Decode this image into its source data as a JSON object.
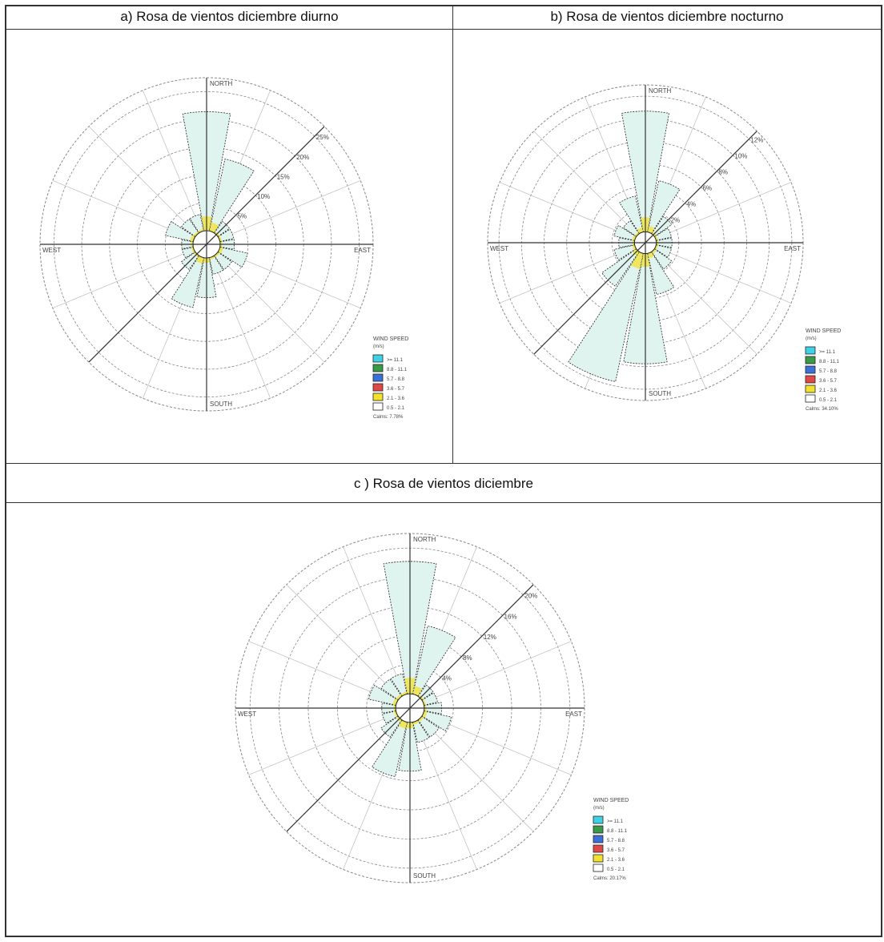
{
  "chart_data": [
    {
      "type": "wind-rose",
      "title": "a) Rosa de vientos diciembre diurno",
      "directions": [
        "N",
        "NNE",
        "NE",
        "ENE",
        "E",
        "ESE",
        "SE",
        "SSE",
        "S",
        "SSW",
        "SW",
        "WSW",
        "W",
        "WNW",
        "NW",
        "NNW"
      ],
      "frequencies_pct": [
        21,
        13,
        2.5,
        2.5,
        2.5,
        5,
        3,
        3,
        7,
        9,
        3,
        2,
        2,
        5,
        3,
        3
      ],
      "ring_labels": [
        "5%",
        "10%",
        "15%",
        "20%",
        "25%"
      ],
      "rmax": 27,
      "compass": {
        "north": "NORTH",
        "east": "EAST",
        "south": "SOUTH",
        "west": "WEST"
      },
      "legend_title": "WIND SPEED",
      "legend_unit": "(m/s)",
      "legend_items": [
        {
          "label": ">= 11.1",
          "color": "#3fd2e6"
        },
        {
          "label": "8.8 - 11.1",
          "color": "#3a9a48"
        },
        {
          "label": "5.7 - 8.8",
          "color": "#3a70d8"
        },
        {
          "label": "3.6 - 5.7",
          "color": "#e04848"
        },
        {
          "label": "2.1 - 3.6",
          "color": "#f2e22e"
        },
        {
          "label": "0.5 - 2.1",
          "color": "#ffffff"
        }
      ],
      "calms": "Calms: 7.78%"
    },
    {
      "type": "wind-rose",
      "title": "b) Rosa de vientos diciembre nocturno",
      "directions": [
        "N",
        "NNE",
        "NE",
        "ENE",
        "E",
        "ESE",
        "SE",
        "SSE",
        "S",
        "SSW",
        "SW",
        "WSW",
        "W",
        "WNW",
        "NW",
        "NNW"
      ],
      "frequencies_pct": [
        11.5,
        5,
        2,
        1.5,
        1.5,
        1.5,
        2,
        4,
        10.5,
        12.5,
        4,
        2,
        1.5,
        2,
        1.5,
        3.5
      ],
      "ring_labels": [
        "2%",
        "4%",
        "6%",
        "8%",
        "10%",
        "12%"
      ],
      "rmax": 14,
      "compass": {
        "north": "NORTH",
        "east": "EAST",
        "south": "SOUTH",
        "west": "WEST"
      },
      "legend_title": "WIND SPEED",
      "legend_unit": "(m/s)",
      "legend_items": [
        {
          "label": ">= 11.1",
          "color": "#3fd2e6"
        },
        {
          "label": "8.8 - 11.1",
          "color": "#3a9a48"
        },
        {
          "label": "5.7 - 8.8",
          "color": "#3a70d8"
        },
        {
          "label": "3.6 - 5.7",
          "color": "#e04848"
        },
        {
          "label": "2.1 - 3.6",
          "color": "#f2e22e"
        },
        {
          "label": "0.5 - 2.1",
          "color": "#ffffff"
        }
      ],
      "calms": "Calms: 34.10%"
    },
    {
      "type": "wind-rose",
      "title": "c ) Rosa de vientos diciembre",
      "directions": [
        "N",
        "NNE",
        "NE",
        "ENE",
        "E",
        "ESE",
        "SE",
        "SSE",
        "S",
        "SSW",
        "SW",
        "WSW",
        "W",
        "WNW",
        "NW",
        "NNW"
      ],
      "frequencies_pct": [
        19,
        10,
        2,
        2,
        2.5,
        4,
        3,
        3,
        7,
        8,
        3,
        2,
        2,
        4,
        3,
        3
      ],
      "ring_labels": [
        "4%",
        "8%",
        "12%",
        "16%",
        "20%"
      ],
      "rmax": 23,
      "compass": {
        "north": "NORTH",
        "east": "EAST",
        "south": "SOUTH",
        "west": "WEST"
      },
      "legend_title": "WIND SPEED",
      "legend_unit": "(m/s)",
      "legend_items": [
        {
          "label": ">= 11.1",
          "color": "#3fd2e6"
        },
        {
          "label": "8.8 - 11.1",
          "color": "#3a9a48"
        },
        {
          "label": "5.7 - 8.8",
          "color": "#3a70d8"
        },
        {
          "label": "3.6 - 5.7",
          "color": "#e04848"
        },
        {
          "label": "2.1 - 3.6",
          "color": "#f2e22e"
        },
        {
          "label": "0.5 - 2.1",
          "color": "#ffffff"
        }
      ],
      "calms": "Calms: 20.17%"
    }
  ],
  "colors": {
    "petal_fill": "#dff3ef",
    "calm_band": "#f2e22e",
    "grid": "#888888",
    "axis": "#333333"
  }
}
